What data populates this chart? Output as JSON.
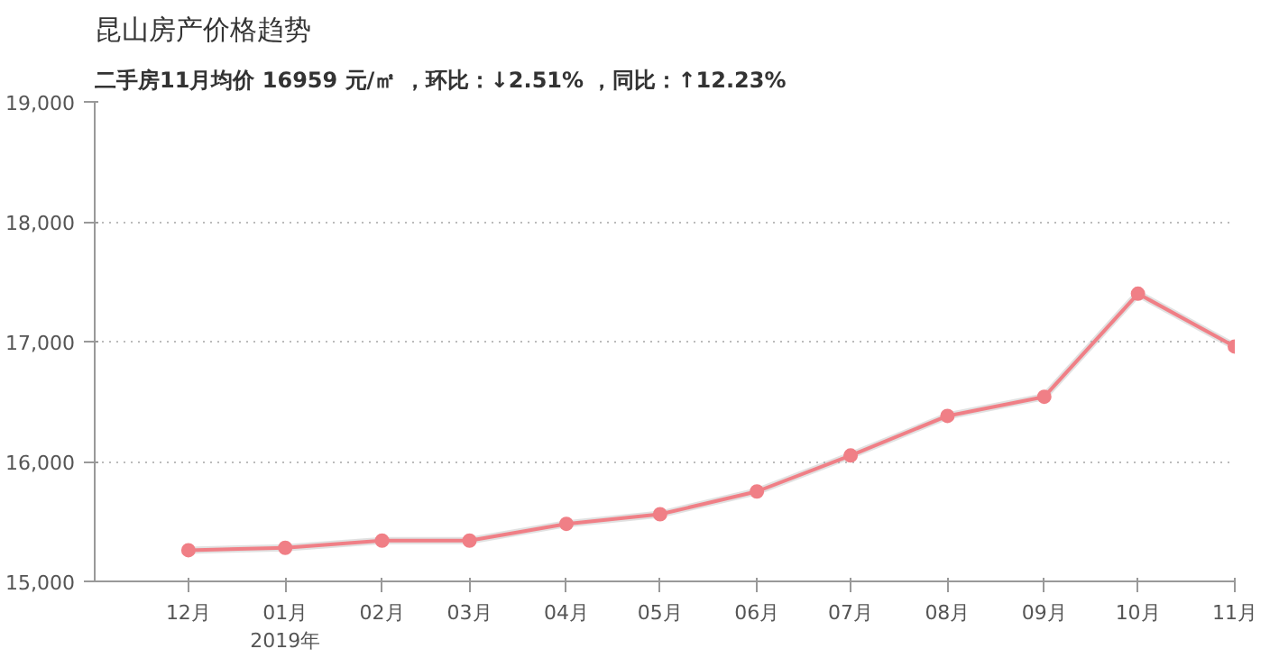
{
  "chart_data": {
    "type": "line",
    "title": "昆山房产价格趋势",
    "subtitle": "二手房11月均价 16959 元/㎡ ，环比：↓2.51% ，同比：↑12.23%",
    "x": [
      "2018-12",
      "2019-01",
      "2019-02",
      "2019-03",
      "2019-04",
      "2019-05",
      "2019-06",
      "2019-07",
      "2019-08",
      "2019-09",
      "2019-10",
      "2019-11"
    ],
    "series": [
      {
        "color": "#f07f86",
        "values": [
          15260,
          15280,
          15340,
          15340,
          15480,
          15560,
          15750,
          16050,
          16380,
          16540,
          17400,
          16959
        ]
      }
    ],
    "xlim": [
      "2018-11",
      "2019-11"
    ],
    "xticks": [
      {
        "value": "2018-12",
        "label": "12月"
      },
      {
        "value": "2019-01",
        "label": "01月\n2019年"
      },
      {
        "value": "2019-02",
        "label": "02月"
      },
      {
        "value": "2019-03",
        "label": "03月"
      },
      {
        "value": "2019-04",
        "label": "04月"
      },
      {
        "value": "2019-05",
        "label": "05月"
      },
      {
        "value": "2019-06",
        "label": "06月"
      },
      {
        "value": "2019-07",
        "label": "07月"
      },
      {
        "value": "2019-08",
        "label": "08月"
      },
      {
        "value": "2019-09",
        "label": "09月"
      },
      {
        "value": "2019-10",
        "label": "10月"
      },
      {
        "value": "2019-11",
        "label": "11月"
      }
    ],
    "ylim": [
      15000,
      19000
    ],
    "yticks": [
      {
        "value": 15000,
        "label": "15,000"
      },
      {
        "value": 16000,
        "label": "16,000"
      },
      {
        "value": 17000,
        "label": "17,000"
      },
      {
        "value": 18000,
        "label": "18,000"
      },
      {
        "value": 19000,
        "label": "19,000"
      }
    ],
    "grid": "y",
    "marker": "circle",
    "line_style": "solid"
  }
}
